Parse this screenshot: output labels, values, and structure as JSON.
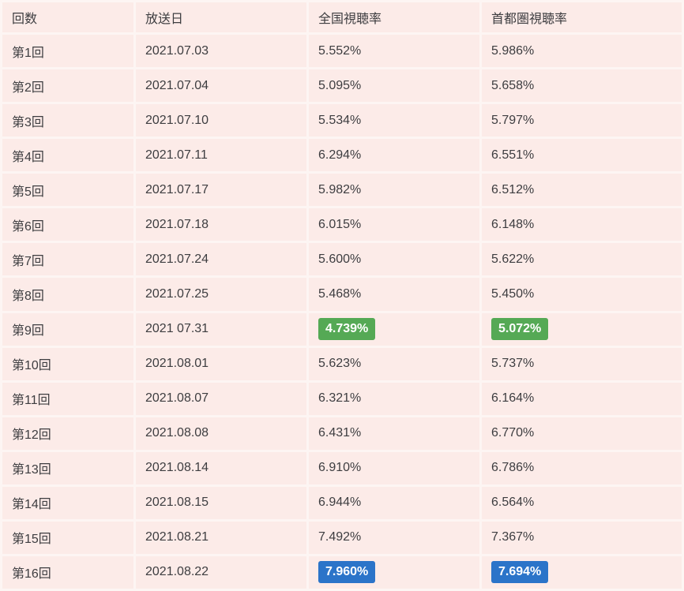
{
  "chart_data": {
    "type": "table",
    "columns": [
      "回数",
      "放送日",
      "全国視聴率",
      "首都圏視聴率"
    ],
    "rows": [
      {
        "episode": "第1回",
        "date": "2021.07.03",
        "national": "5.552%",
        "metro": "5.986%",
        "highlight": ""
      },
      {
        "episode": "第2回",
        "date": "2021.07.04",
        "national": "5.095%",
        "metro": "5.658%",
        "highlight": ""
      },
      {
        "episode": "第3回",
        "date": "2021.07.10",
        "national": "5.534%",
        "metro": "5.797%",
        "highlight": ""
      },
      {
        "episode": "第4回",
        "date": "2021.07.11",
        "national": "6.294%",
        "metro": "6.551%",
        "highlight": ""
      },
      {
        "episode": "第5回",
        "date": "2021.07.17",
        "national": "5.982%",
        "metro": "6.512%",
        "highlight": ""
      },
      {
        "episode": "第6回",
        "date": "2021.07.18",
        "national": "6.015%",
        "metro": "6.148%",
        "highlight": ""
      },
      {
        "episode": "第7回",
        "date": "2021.07.24",
        "national": "5.600%",
        "metro": "5.622%",
        "highlight": ""
      },
      {
        "episode": "第8回",
        "date": "2021.07.25",
        "national": "5.468%",
        "metro": "5.450%",
        "highlight": ""
      },
      {
        "episode": "第9回",
        "date": "2021 07.31",
        "national": "4.739%",
        "metro": "5.072%",
        "highlight": "low"
      },
      {
        "episode": "第10回",
        "date": "2021.08.01",
        "national": "5.623%",
        "metro": "5.737%",
        "highlight": ""
      },
      {
        "episode": "第11回",
        "date": "2021.08.07",
        "national": "6.321%",
        "metro": "6.164%",
        "highlight": ""
      },
      {
        "episode": "第12回",
        "date": "2021.08.08",
        "national": "6.431%",
        "metro": "6.770%",
        "highlight": ""
      },
      {
        "episode": "第13回",
        "date": "2021.08.14",
        "national": "6.910%",
        "metro": "6.786%",
        "highlight": ""
      },
      {
        "episode": "第14回",
        "date": "2021.08.15",
        "national": "6.944%",
        "metro": "6.564%",
        "highlight": ""
      },
      {
        "episode": "第15回",
        "date": "2021.08.21",
        "national": "7.492%",
        "metro": "7.367%",
        "highlight": ""
      },
      {
        "episode": "第16回",
        "date": "2021.08.22",
        "national": "7.960%",
        "metro": "7.694%",
        "highlight": "high"
      }
    ]
  },
  "colors": {
    "cell_background": "#fcebe8",
    "gap_background": "#fdf5f3",
    "text": "#3d3d40",
    "lowest_badge_green": "#55a955",
    "highest_badge_blue": "#2b74c9",
    "badge_text": "#ffffff"
  }
}
